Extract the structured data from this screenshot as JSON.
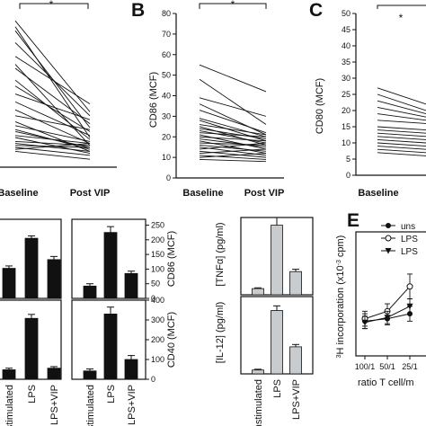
{
  "panels": [
    {
      "id": "a",
      "letter": "",
      "star": "*",
      "xlabels": [
        "Baseline",
        "Post VIP"
      ],
      "ylabel": "",
      "ticks": []
    },
    {
      "id": "b",
      "letter": "B",
      "star": "*",
      "xlabels": [
        "Baseline",
        "Post VIP"
      ],
      "ylabel": "CD86 (MCF)",
      "ticks": [
        "0",
        "10",
        "20",
        "30",
        "40",
        "50",
        "60",
        "70",
        "80"
      ]
    },
    {
      "id": "c",
      "letter": "C",
      "star": "*",
      "xlabels": [
        "Baseline"
      ],
      "ylabel": "CD80 (MCF)",
      "ticks": [
        "0",
        "5",
        "10",
        "15",
        "20",
        "25",
        "30",
        "35",
        "40",
        "45",
        "50"
      ]
    }
  ],
  "bars_panel": {
    "right_ylabels": [
      "CD86 (MCF)",
      "CD40 (MCF)"
    ],
    "top_ticks": [
      "0",
      "50",
      "100",
      "150",
      "200",
      "250"
    ],
    "bottom_ticks": [
      "0",
      "100",
      "200",
      "300",
      "400"
    ],
    "categories": [
      "unstimulated",
      "LPS",
      "LPS+VIP"
    ]
  },
  "cytokine_panel": {
    "ylabels": [
      "[TNFα] (pg/ml)",
      "[IL-12] (pg/ml)"
    ],
    "categories": [
      "unstimulated",
      "LPS",
      "LPS+VIP"
    ]
  },
  "panel_e": {
    "letter": "E",
    "ylabel": "3H incorporation (x10-3 cpm)",
    "xlabel": "ratio T cell/m",
    "xticks": [
      "100/1",
      "50/1",
      "25/1"
    ],
    "legend": [
      "uns",
      "LPS",
      "LPS"
    ]
  },
  "chart_data": [
    {
      "type": "line",
      "panel": "A",
      "categories": [
        "Baseline",
        "Post VIP"
      ],
      "note": "paired patient values, no y scale visible",
      "pairs": [
        [
          74,
          28
        ],
        [
          71,
          15
        ],
        [
          69,
          20
        ],
        [
          63,
          26
        ],
        [
          56,
          32
        ],
        [
          52,
          11
        ],
        [
          50,
          22
        ],
        [
          44,
          14
        ],
        [
          41,
          18
        ],
        [
          37,
          24
        ],
        [
          33,
          16
        ],
        [
          29,
          12
        ],
        [
          26,
          19
        ],
        [
          23,
          8
        ],
        [
          21,
          13
        ],
        [
          19,
          9
        ],
        [
          18,
          10
        ],
        [
          16,
          12
        ],
        [
          15,
          7
        ],
        [
          13,
          11
        ],
        [
          12,
          8
        ],
        [
          11,
          10
        ],
        [
          10,
          6
        ],
        [
          9,
          12
        ],
        [
          8,
          4
        ]
      ]
    },
    {
      "type": "line",
      "panel": "B",
      "categories": [
        "Baseline",
        "Post VIP"
      ],
      "ylabel": "CD86 (MCF)",
      "ylim": [
        0,
        80
      ],
      "pairs": [
        [
          55,
          42
        ],
        [
          48,
          26
        ],
        [
          39,
          30
        ],
        [
          36,
          21
        ],
        [
          33,
          22
        ],
        [
          29,
          20
        ],
        [
          28,
          18
        ],
        [
          26,
          21
        ],
        [
          25,
          16
        ],
        [
          24,
          19
        ],
        [
          23,
          17
        ],
        [
          22,
          20
        ],
        [
          21,
          14
        ],
        [
          20,
          18
        ],
        [
          19,
          15
        ],
        [
          18,
          12
        ],
        [
          17,
          16
        ],
        [
          16,
          13
        ],
        [
          15,
          11
        ],
        [
          14,
          17
        ],
        [
          13,
          10
        ],
        [
          12,
          14
        ],
        [
          11,
          9
        ],
        [
          10,
          12
        ],
        [
          9,
          8
        ]
      ]
    },
    {
      "type": "line",
      "panel": "C",
      "categories": [
        "Baseline"
      ],
      "ylabel": "CD80 (MCF)",
      "ylim": [
        0,
        50
      ],
      "pairs": [
        [
          27,
          22
        ],
        [
          25,
          20
        ],
        [
          23,
          19
        ],
        [
          21,
          18
        ],
        [
          19,
          17
        ],
        [
          17,
          16
        ],
        [
          15,
          14
        ],
        [
          14,
          13
        ],
        [
          13,
          12
        ],
        [
          12,
          11
        ],
        [
          11,
          10
        ],
        [
          10,
          9
        ],
        [
          9,
          8
        ],
        [
          8,
          7
        ],
        [
          7,
          6
        ]
      ]
    },
    {
      "type": "bar",
      "panel": "D-left-top",
      "categories": [
        "unstimulated",
        "LPS",
        "LPS+VIP"
      ],
      "values": [
        0.38,
        0.76,
        0.49
      ],
      "errors": [
        0.03,
        0.03,
        0.04
      ]
    },
    {
      "type": "bar",
      "panel": "D-left-bottom",
      "categories": [
        "unstimulated",
        "LPS",
        "LPS+VIP"
      ],
      "values": [
        0.12,
        0.77,
        0.14
      ],
      "errors": [
        0.02,
        0.05,
        0.02
      ]
    },
    {
      "type": "bar",
      "panel": "D-right-top",
      "categories": [
        "unstimulated",
        "LPS",
        "LPS+VIP"
      ],
      "ylabel": "CD86 (MCF)",
      "ylim": [
        0,
        250
      ],
      "values": [
        42,
        225,
        85
      ],
      "errors": [
        8,
        20,
        8
      ]
    },
    {
      "type": "bar",
      "panel": "D-right-bottom",
      "categories": [
        "unstimulated",
        "LPS",
        "LPS+VIP"
      ],
      "ylabel": "CD40 (MCF)",
      "ylim": [
        0,
        400
      ],
      "values": [
        42,
        330,
        100
      ],
      "errors": [
        10,
        35,
        20
      ]
    },
    {
      "type": "bar",
      "panel": "TNF",
      "categories": [
        "unstimulated",
        "LPS",
        "LPS+VIP"
      ],
      "ylabel": "[TNFα] (pg/ml)",
      "values": [
        0.08,
        0.9,
        0.3
      ],
      "errors": [
        0.01,
        0.1,
        0.03
      ]
    },
    {
      "type": "bar",
      "panel": "IL12",
      "categories": [
        "unstimulated",
        "LPS",
        "LPS+VIP"
      ],
      "ylabel": "[IL-12] (pg/ml)",
      "values": [
        0.05,
        0.82,
        0.35
      ],
      "errors": [
        0.01,
        0.06,
        0.03
      ]
    },
    {
      "type": "line",
      "panel": "E",
      "x": [
        "100/1",
        "50/1",
        "25/1"
      ],
      "series": [
        {
          "name": "uns",
          "marker": "filled-circle",
          "values": [
            0.28,
            0.3,
            0.34
          ],
          "errors": [
            0.06,
            0.05,
            0.06
          ]
        },
        {
          "name": "LPS",
          "marker": "open-circle",
          "values": [
            0.3,
            0.36,
            0.56
          ],
          "errors": [
            0.06,
            0.06,
            0.1
          ]
        },
        {
          "name": "LPS",
          "marker": "filled-triangle",
          "values": [
            0.27,
            0.31,
            0.4
          ],
          "errors": [
            0.05,
            0.05,
            0.06
          ]
        }
      ]
    }
  ]
}
